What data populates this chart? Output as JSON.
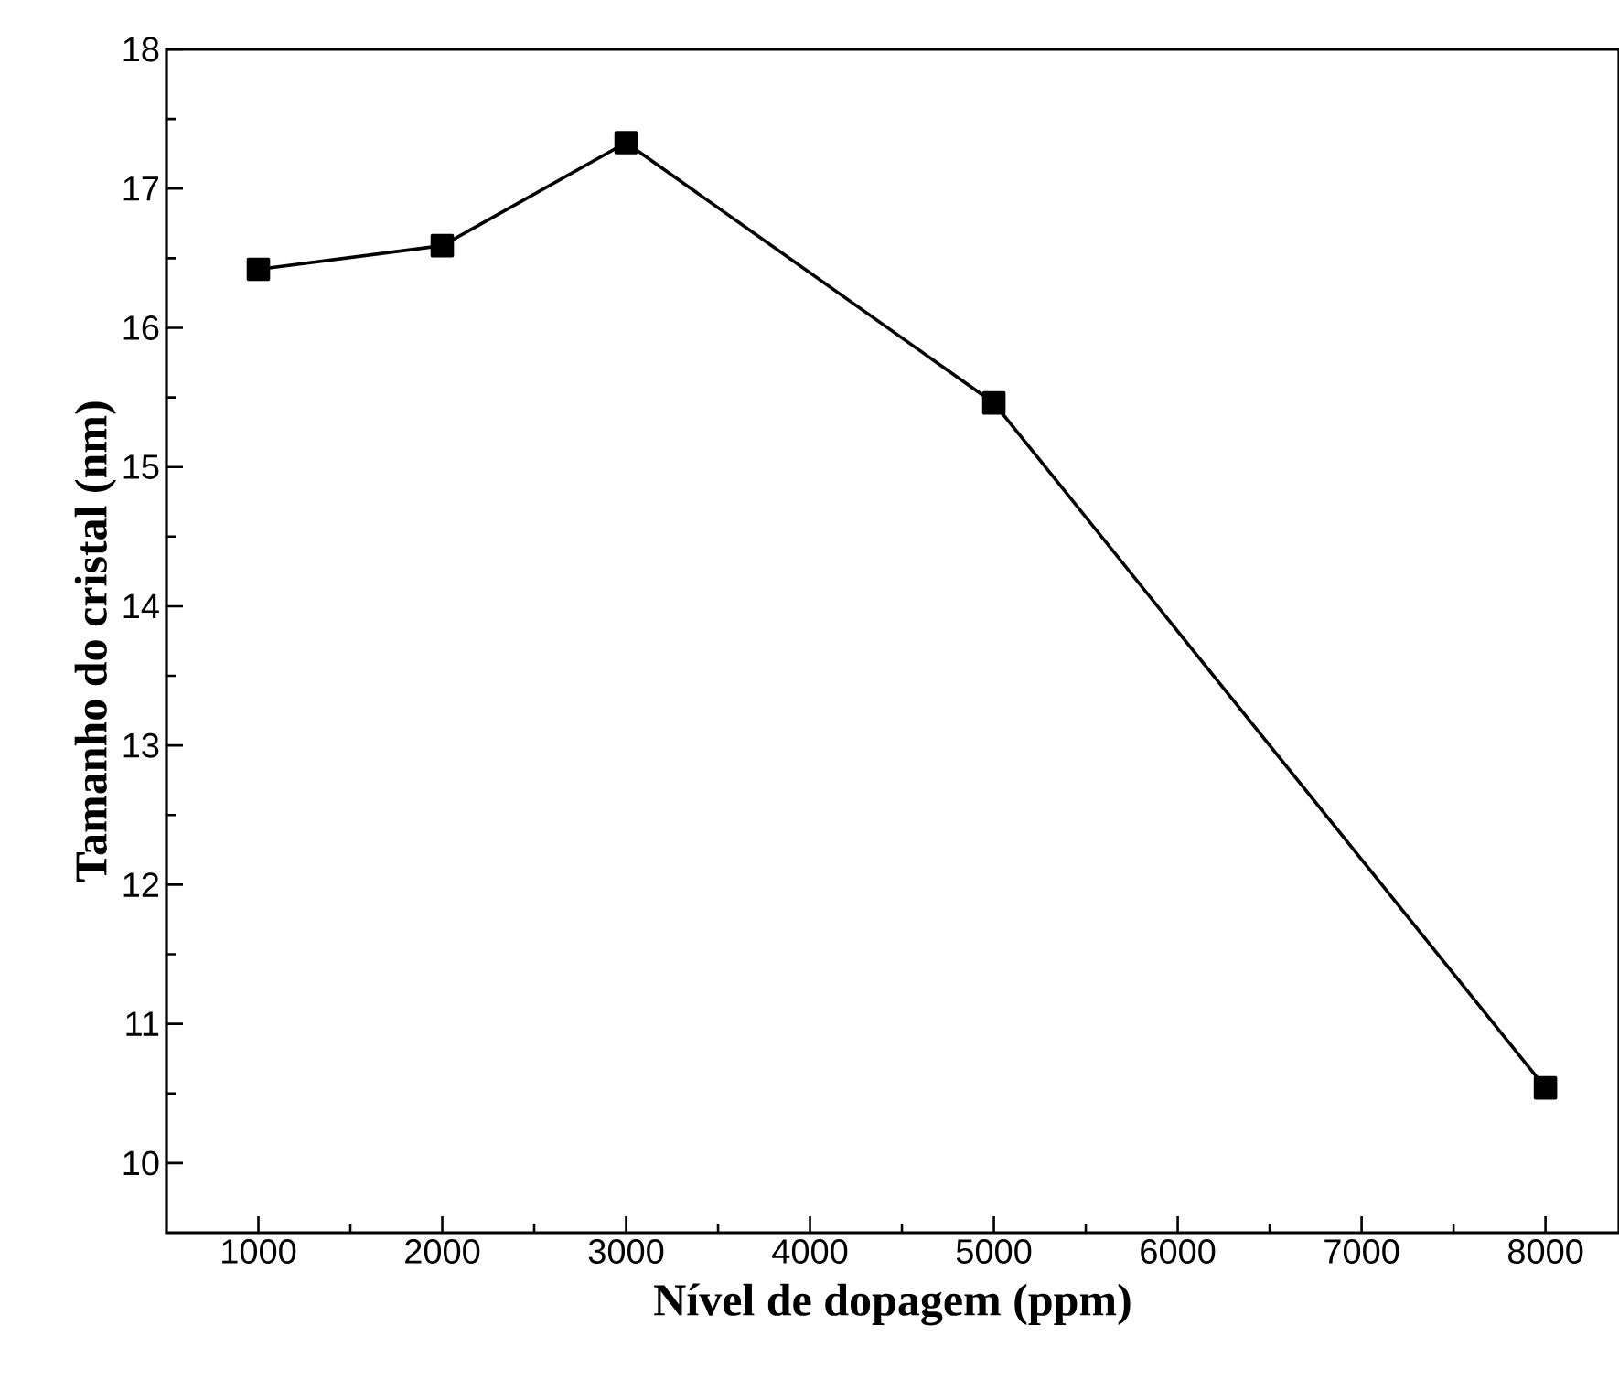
{
  "chart_data": {
    "type": "line",
    "xlabel": "Nível de dopagem (ppm)",
    "ylabel": "Tamanho do cristal (nm)",
    "x": [
      1000,
      2000,
      3000,
      5000,
      8000
    ],
    "values": [
      16.42,
      16.59,
      17.33,
      15.46,
      10.54
    ],
    "color": "#000000",
    "marker": "square",
    "line_style": "solid",
    "xlim": [
      500,
      8400
    ],
    "ylim": [
      9.5,
      18
    ],
    "xticks": [
      1000,
      {
        "value": 1500,
        "label": null
      },
      2000,
      {
        "value": 2500,
        "label": null
      },
      3000,
      {
        "value": 3500,
        "label": null
      },
      4000,
      {
        "value": 4500,
        "label": null
      },
      5000,
      {
        "value": 5500,
        "label": null
      },
      6000,
      {
        "value": 6500,
        "label": null
      },
      7000,
      {
        "value": 7500,
        "label": null
      },
      8000
    ],
    "yticks": [
      10,
      {
        "value": 10.5,
        "label": null
      },
      11,
      {
        "value": 11.5,
        "label": null
      },
      12,
      {
        "value": 12.5,
        "label": null
      },
      13,
      {
        "value": 13.5,
        "label": null
      },
      14,
      {
        "value": 14.5,
        "label": null
      },
      15,
      {
        "value": 15.5,
        "label": null
      },
      16,
      {
        "value": 16.5,
        "label": null
      },
      17,
      {
        "value": 17.5,
        "label": null
      },
      18
    ]
  }
}
